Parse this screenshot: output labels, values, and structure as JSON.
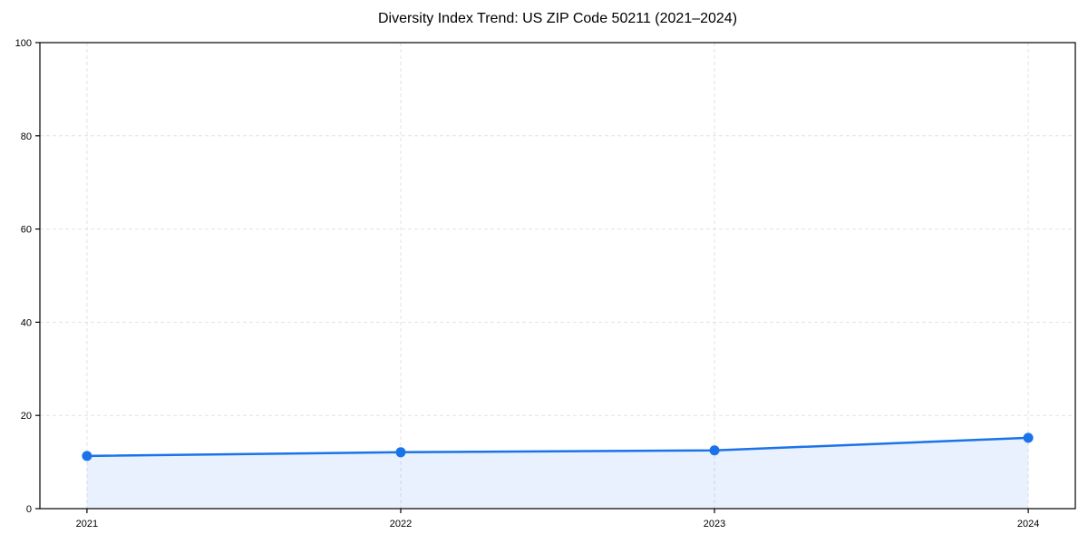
{
  "chart_data": {
    "type": "line",
    "title": "Diversity Index Trend: US ZIP Code 50211 (2021–2024)",
    "x": [
      2021,
      2022,
      2023,
      2024
    ],
    "x_labels": [
      "2021",
      "2022",
      "2023",
      "2024"
    ],
    "series": [
      {
        "name": "Diversity Index",
        "values": [
          11.3,
          12.1,
          12.5,
          15.2
        ],
        "color": "#1a73e8",
        "fill_color": "rgba(26,115,232,0.10)",
        "marker": "circle"
      }
    ],
    "xlabel": "",
    "ylabel": "",
    "xlim": [
      2020.85,
      2024.15
    ],
    "ylim": [
      0,
      100
    ],
    "yticks": [
      0,
      20,
      40,
      60,
      80,
      100
    ],
    "grid": true,
    "grid_style": "dashed",
    "grid_color": "#e2e2e2",
    "spine_color": "#000000",
    "tick_color": "#000000",
    "text_color": "#000000",
    "tick_font_size": 11,
    "legend_position": "none",
    "area_fill": true,
    "background": "#ffffff"
  }
}
